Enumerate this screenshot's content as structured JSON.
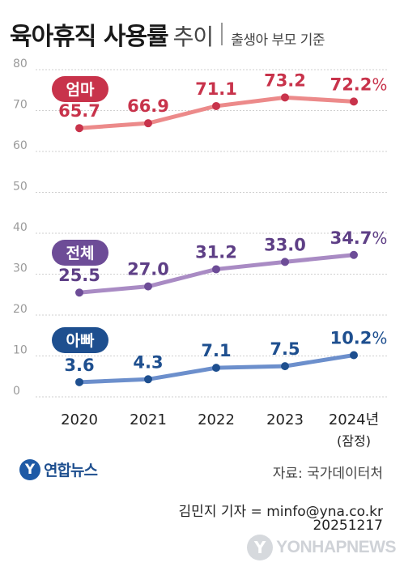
{
  "header": {
    "title_main": "육아휴직 사용률",
    "title_tail": "추이",
    "subtitle": "출생아 부모 기준"
  },
  "chart_data": {
    "type": "line",
    "x": [
      "2020",
      "2021",
      "2022",
      "2023",
      "2024년"
    ],
    "x_sublabel_last": "(잠정)",
    "ylim": [
      0,
      80
    ],
    "yticks": [
      0,
      10,
      20,
      30,
      40,
      50,
      60,
      70,
      80
    ],
    "grid": true,
    "series": [
      {
        "name": "엄마",
        "values": [
          65.7,
          66.9,
          71.1,
          73.2,
          72.2
        ],
        "labels": [
          "65.7",
          "66.9",
          "71.1",
          "73.2",
          "72.2"
        ],
        "line_color": "#ec8a8a",
        "label_color": "#c8334b",
        "badge_color": "#c8334b"
      },
      {
        "name": "전체",
        "values": [
          25.5,
          27.0,
          31.2,
          33.0,
          34.7
        ],
        "labels": [
          "25.5",
          "27.0",
          "31.2",
          "33.0",
          "34.7"
        ],
        "line_color": "#a98bc4",
        "label_color": "#5e3f86",
        "badge_color": "#6d4c97"
      },
      {
        "name": "아빠",
        "values": [
          3.6,
          4.3,
          7.1,
          7.5,
          10.2
        ],
        "labels": [
          "3.6",
          "4.3",
          "7.1",
          "7.5",
          "10.2"
        ],
        "line_color": "#6c8fcc",
        "label_color": "#1e4f8f",
        "badge_color": "#1e4f8f"
      }
    ],
    "last_label_unit": "%"
  },
  "footer": {
    "source": "자료: 국가데이터처",
    "credit": "김민지 기자 = minfo@yna.co.kr",
    "date": "20251217",
    "logo_text": "연합뉴스",
    "watermark_text": "YONHAPNEWS"
  }
}
